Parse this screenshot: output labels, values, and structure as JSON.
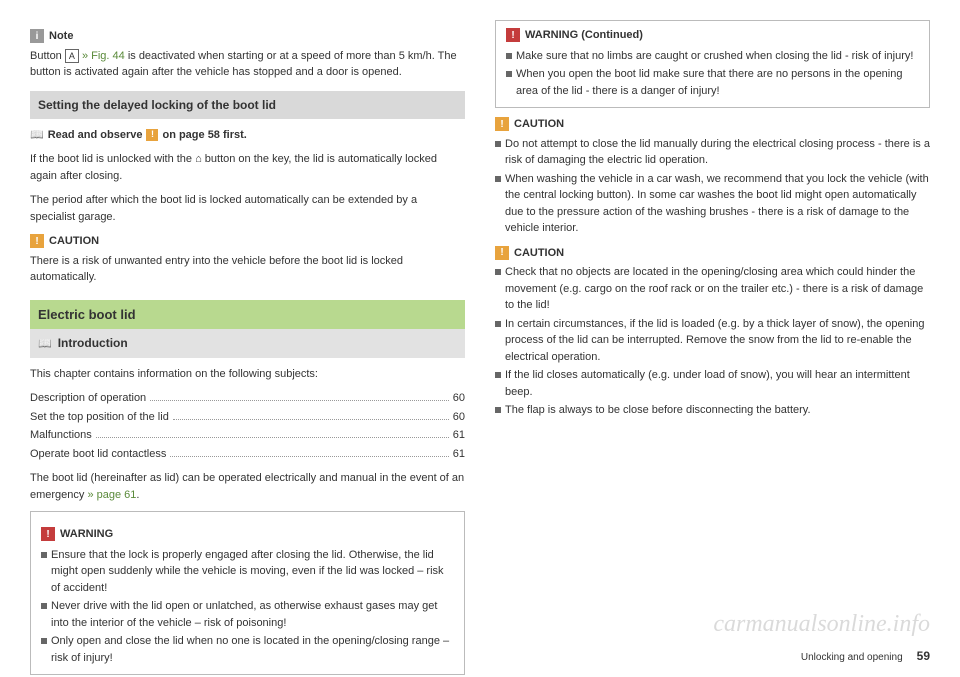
{
  "left": {
    "note": {
      "label": "Note",
      "body_pre": "Button ",
      "key": "A",
      "fig_ref": " » Fig. 44",
      "body_post": " is deactivated when starting or at a speed of more than 5 km/h. The button is activated again after the vehicle has stopped and a door is opened."
    },
    "section_delayed": "Setting the delayed locking of the boot lid",
    "read_observe": {
      "pre": "Read and observe ",
      "post": " on page 58 first."
    },
    "delayed_p1": "If the boot lid is unlocked with the ⌂ button on the key, the lid is automatically locked again after closing.",
    "delayed_p2": "The period after which the boot lid is locked automatically can be extended by a specialist garage.",
    "caution1": {
      "label": "CAUTION",
      "body": "There is a risk of unwanted entry into the vehicle before the boot lid is locked automatically."
    },
    "section_electric": "Electric boot lid",
    "intro_label": "Introduction",
    "intro_p": "This chapter contains information on the following subjects:",
    "toc": [
      {
        "label": "Description of operation",
        "page": "60"
      },
      {
        "label": "Set the top position of the lid",
        "page": "60"
      },
      {
        "label": "Malfunctions",
        "page": "61"
      },
      {
        "label": "Operate boot lid contactless",
        "page": "61"
      }
    ],
    "intro_p2_pre": "The boot lid (hereinafter as lid) can be operated electrically and manual in the event of an emergency ",
    "intro_p2_link": "» page 61",
    "intro_p2_post": ".",
    "warning": {
      "label": "WARNING",
      "bullets": [
        "Ensure that the lock is properly engaged after closing the lid. Otherwise, the lid might open suddenly while the vehicle is moving, even if the lid was locked – risk of accident!",
        "Never drive with the lid open or unlatched, as otherwise exhaust gases may get into the interior of the vehicle – risk of poisoning!",
        "Only open and close the lid when no one is located in the opening/closing range – risk of injury!"
      ]
    }
  },
  "right": {
    "warning_cont": {
      "label": "WARNING (Continued)",
      "bullets": [
        "Make sure that no limbs are caught or crushed when closing the lid - risk of injury!",
        "When you open the boot lid make sure that there are no persons in the opening area of the lid - there is a danger of injury!"
      ]
    },
    "caution_a": {
      "label": "CAUTION",
      "bullets": [
        "Do not attempt to close the lid manually during the electrical closing process - there is a risk of damaging the electric lid operation.",
        "When washing the vehicle in a car wash, we recommend that you lock the vehicle (with the central locking button). In some car washes the boot lid might open automatically due to the pressure action of the washing brushes - there is a risk of damage to the vehicle interior."
      ]
    },
    "caution_b": {
      "label": "CAUTION",
      "bullets": [
        "Check that no objects are located in the opening/closing area which could hinder the movement (e.g. cargo on the roof rack or on the trailer etc.) - there is a risk of damage to the lid!",
        "In certain circumstances, if the lid is loaded (e.g. by a thick layer of snow), the opening process of the lid can be interrupted. Remove the snow from the lid to re-enable the electrical operation.",
        "If the lid closes automatically (e.g. under load of snow), you will hear an intermittent beep.",
        "The flap is always to be close before disconnecting the battery."
      ]
    }
  },
  "footer": {
    "section": "Unlocking and opening",
    "page": "59"
  },
  "watermark": "carmanualsonline.info"
}
